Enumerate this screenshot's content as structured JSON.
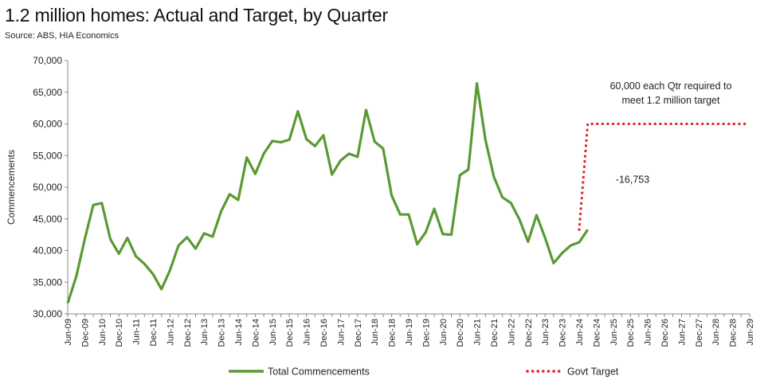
{
  "chart_data": {
    "type": "line",
    "title": "1.2 million homes: Actual and Target, by Quarter",
    "subtitle": "Source: ABS, HIA Economics",
    "ylabel": "Commencements",
    "xlabel": "",
    "ylim": [
      30000,
      70000
    ],
    "yticks": [
      "30,000",
      "35,000",
      "40,000",
      "45,000",
      "50,000",
      "55,000",
      "60,000",
      "65,000",
      "70,000"
    ],
    "xticks": [
      "Jun-09",
      "Dec-09",
      "Jun-10",
      "Dec-10",
      "Jun-11",
      "Dec-11",
      "Jun-12",
      "Dec-12",
      "Jun-13",
      "Dec-13",
      "Jun-14",
      "Dec-14",
      "Jun-15",
      "Dec-15",
      "Jun-16",
      "Dec-16",
      "Jun-17",
      "Dec-17",
      "Jun-18",
      "Dec-18",
      "Jun-19",
      "Dec-19",
      "Jun-20",
      "Dec-20",
      "Jun-21",
      "Dec-21",
      "Jun-22",
      "Dec-22",
      "Jun-23",
      "Dec-23",
      "Jun-24",
      "Dec-24",
      "Jun-25",
      "Dec-25",
      "Jun-26",
      "Dec-26",
      "Jun-27",
      "Dec-27",
      "Jun-28",
      "Dec-28",
      "Jun-29"
    ],
    "grid": false,
    "legend_position": "bottom",
    "series": [
      {
        "name": "Total Commencements",
        "color": "#5a9a32",
        "style": "solid",
        "start_quarter": "Jun-09",
        "values": [
          31700,
          35900,
          41800,
          47200,
          47500,
          41800,
          39500,
          42000,
          39100,
          37900,
          36300,
          33900,
          36900,
          40800,
          42100,
          40300,
          42700,
          42200,
          46200,
          48900,
          48000,
          54700,
          52100,
          55300,
          57300,
          57100,
          57500,
          62000,
          57600,
          56500,
          58200,
          52000,
          54200,
          55300,
          54800,
          62200,
          57200,
          56100,
          48700,
          45700,
          45700,
          41000,
          42900,
          46600,
          42600,
          42500,
          51900,
          52800,
          66400,
          57500,
          51600,
          48400,
          47500,
          44900,
          41400,
          45600,
          42000,
          38000,
          39600,
          40800,
          41300,
          43300
        ]
      },
      {
        "name": "Govt Target",
        "color": "#e02020",
        "style": "dotted",
        "start_quarter": "Jun-24",
        "values": [
          43300,
          60000,
          60000,
          60000,
          60000,
          60000,
          60000,
          60000,
          60000,
          60000,
          60000,
          60000,
          60000,
          60000,
          60000,
          60000,
          60000,
          60000,
          60000,
          60000,
          60000
        ]
      }
    ],
    "annotations": [
      {
        "text_lines": [
          "60,000 each Qtr required to",
          "meet 1.2 million target"
        ],
        "anchor_quarter": "Dec-26",
        "anchor_value": 65500
      },
      {
        "text": "-16,753",
        "anchor_quarter": "Jun-25",
        "anchor_value": 50700
      }
    ]
  }
}
